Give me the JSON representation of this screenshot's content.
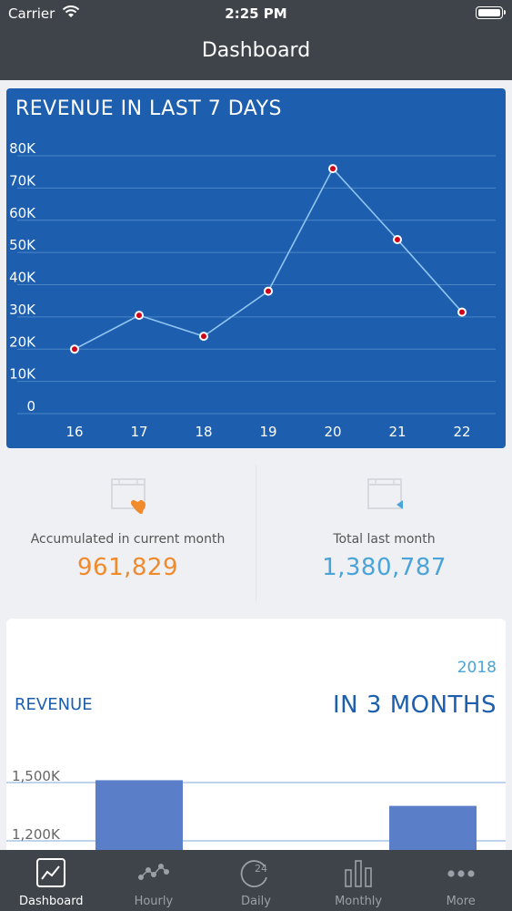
{
  "status_bar": {
    "carrier": "Carrier",
    "time": "2:25 PM"
  },
  "nav": {
    "title": "Dashboard"
  },
  "revenue_7_days": {
    "title": "REVENUE IN LAST 7 DAYS",
    "chart_data": {
      "type": "line",
      "title": "REVENUE IN LAST 7 DAYS",
      "x": [
        "16",
        "17",
        "18",
        "19",
        "20",
        "21",
        "22"
      ],
      "values": [
        20,
        30.5,
        24,
        38,
        76,
        54,
        31.5
      ],
      "unit_suffix": "K",
      "ylim": [
        0,
        80
      ],
      "y_ticks": [
        "0",
        "10K",
        "20K",
        "30K",
        "40K",
        "50K",
        "60K",
        "70K",
        "80K"
      ],
      "grid": true,
      "colors": {
        "background": "#1d5fae",
        "line": "#8fc4f0",
        "marker_fill": "#d0021b",
        "marker_ring": "#ffffff",
        "grid": "#4b85c6"
      }
    }
  },
  "stats": {
    "accumulated": {
      "label": "Accumulated in current month",
      "value": "961,829",
      "icon": "heart-icon",
      "color": "#f08a2d"
    },
    "last_month": {
      "label": "Total last month",
      "value": "1,380,787",
      "icon": "triangle-left-icon",
      "color": "#4aa4d8"
    }
  },
  "revenue_3_months": {
    "year": "2018",
    "label": "REVENUE",
    "headline": "IN 3 MONTHS",
    "chart_data": {
      "type": "bar",
      "categories": [
        "",
        "",
        ""
      ],
      "values": [
        1512,
        null,
        1380
      ],
      "y_ticks": [
        "1,200K",
        "1,500K"
      ],
      "ylim": [
        1100,
        1600
      ],
      "colors": {
        "bar": "#5a7fc8",
        "grid": "#7ea8d8"
      }
    }
  },
  "tabbar": {
    "items": [
      {
        "label": "Dashboard",
        "icon": "chart-icon",
        "active": true
      },
      {
        "label": "Hourly",
        "icon": "scatter-icon",
        "active": false
      },
      {
        "label": "Daily",
        "icon": "clock-24-icon",
        "active": false
      },
      {
        "label": "Monthly",
        "icon": "bars-icon",
        "active": false
      },
      {
        "label": "More",
        "icon": "more-icon",
        "active": false
      }
    ]
  }
}
